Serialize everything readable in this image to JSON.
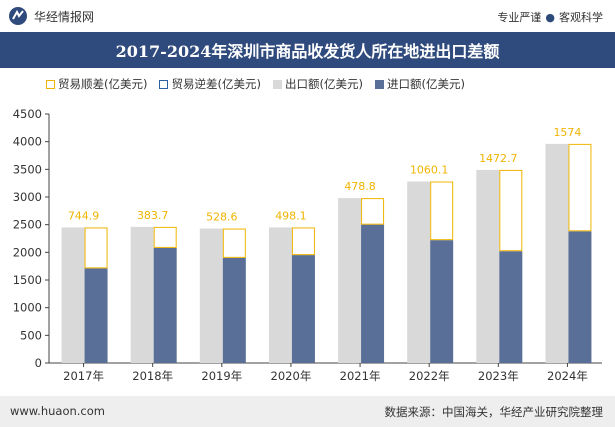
{
  "header": {
    "brand": "华经情报网",
    "tagline_left": "专业严谨",
    "tagline_dot": "●",
    "tagline_right": "客观科学",
    "logo_icon": "huajing-logo-icon"
  },
  "colors": {
    "title_bg": "#2f4a7c",
    "export": "#d9d9d9",
    "import": "#5a6f97",
    "surplus": "#f0b400",
    "deficit": "#2e5fa0"
  },
  "chart_data": {
    "type": "bar",
    "title": "2017-2024年深圳市商品收发货人所在地进出口差额",
    "categories": [
      "2017年",
      "2018年",
      "2019年",
      "2020年",
      "2021年",
      "2022年",
      "2023年",
      "2024年"
    ],
    "series": [
      {
        "name": "出口额(亿美元)",
        "values": [
          2450,
          2460,
          2430,
          2450,
          2980,
          3280,
          3490,
          3960
        ]
      },
      {
        "name": "进口额(亿美元)",
        "values": [
          1710,
          2080,
          1900,
          1950,
          2500,
          2220,
          2020,
          2380
        ]
      }
    ],
    "balance": {
      "surplus_name": "贸易顺差(亿美元)",
      "deficit_name": "贸易逆差(亿美元)",
      "labels": [
        "744.9",
        "383.7",
        "528.6",
        "498.1",
        "478.8",
        "1060.1",
        "1472.7",
        "1574"
      ]
    },
    "yticks": [
      "0",
      "500",
      "1000",
      "1500",
      "2000",
      "2500",
      "3000",
      "3500",
      "4000",
      "4500"
    ],
    "ylim": [
      0,
      4500
    ],
    "xlabel": "",
    "ylabel": "",
    "grid": false,
    "legend_position": "top-left"
  },
  "footer": {
    "url": "www.huaon.com",
    "source": "数据来源：中国海关，华经产业研究院整理"
  }
}
